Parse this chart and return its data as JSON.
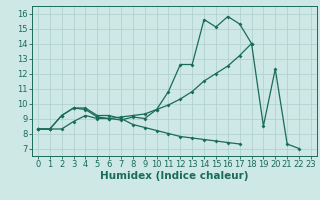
{
  "bg_color": "#cde8e5",
  "line_color": "#1a6b5a",
  "grid_color": "#aecfcc",
  "xlabel": "Humidex (Indice chaleur)",
  "xlabel_fontsize": 7.5,
  "tick_fontsize": 6,
  "xlim": [
    -0.5,
    23.5
  ],
  "ylim": [
    6.5,
    16.5
  ],
  "yticks": [
    7,
    8,
    9,
    10,
    11,
    12,
    13,
    14,
    15,
    16
  ],
  "xticks": [
    0,
    1,
    2,
    3,
    4,
    5,
    6,
    7,
    8,
    9,
    10,
    11,
    12,
    13,
    14,
    15,
    16,
    17,
    18,
    19,
    20,
    21,
    22,
    23
  ],
  "line1_x": [
    0,
    1,
    2,
    3,
    4,
    5,
    6,
    7,
    8,
    9,
    10,
    11,
    12,
    13,
    14,
    15,
    16,
    17,
    18,
    19,
    20,
    21,
    22
  ],
  "line1_y": [
    8.3,
    8.3,
    9.2,
    9.7,
    9.6,
    9.1,
    9.0,
    8.9,
    9.1,
    9.0,
    9.6,
    10.8,
    12.6,
    12.6,
    15.6,
    15.1,
    15.8,
    15.3,
    14.0,
    8.5,
    12.3,
    7.3,
    7.0
  ],
  "line2_x": [
    0,
    1,
    2,
    3,
    4,
    5,
    6,
    7,
    8,
    9,
    10,
    11,
    12,
    13,
    14,
    15,
    16,
    17,
    18
  ],
  "line2_y": [
    8.3,
    8.3,
    8.3,
    8.8,
    9.2,
    9.0,
    9.0,
    9.1,
    9.2,
    9.3,
    9.6,
    9.9,
    10.3,
    10.8,
    11.5,
    12.0,
    12.5,
    13.2,
    14.0
  ],
  "line3_x": [
    0,
    1,
    2,
    3,
    4,
    5,
    6,
    7,
    8,
    9,
    10,
    11,
    12,
    13,
    14,
    15,
    16,
    17
  ],
  "line3_y": [
    8.3,
    8.3,
    9.2,
    9.7,
    9.7,
    9.2,
    9.2,
    9.0,
    8.6,
    8.4,
    8.2,
    8.0,
    7.8,
    7.7,
    7.6,
    7.5,
    7.4,
    7.3
  ]
}
